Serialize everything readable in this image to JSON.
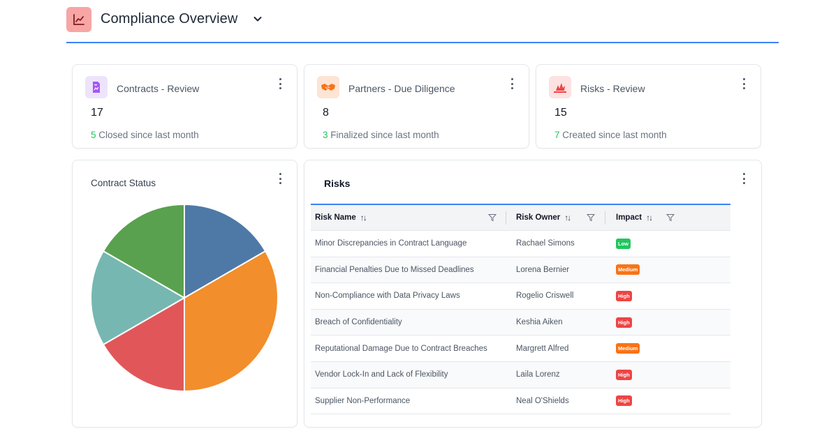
{
  "header": {
    "title": "Compliance Overview"
  },
  "kpis": [
    {
      "title": "Contracts - Review",
      "value": "17",
      "foot_num": "5",
      "foot_text": " Closed since last month",
      "icon": "document-chart-icon",
      "icon_bg": "#ede4fb",
      "icon_color": "#a855f7"
    },
    {
      "title": "Partners - Due Diligence",
      "value": "8",
      "foot_num": "3",
      "foot_text": " Finalized since last month",
      "icon": "handshake-icon",
      "icon_bg": "#fde4d4",
      "icon_color": "#f97316"
    },
    {
      "title": "Risks - Review",
      "value": "15",
      "foot_num": "7",
      "foot_text": " Created since last month",
      "icon": "warning-burst-icon",
      "icon_bg": "#fde2e2",
      "icon_color": "#ef4444"
    }
  ],
  "pie": {
    "title": "Contract Status"
  },
  "chart_data": {
    "type": "pie",
    "title": "Contract Status",
    "values": [
      3,
      6,
      3,
      3,
      3
    ],
    "colors": [
      "#4e79a7",
      "#f28e2b",
      "#e15759",
      "#76b7b2",
      "#59a14f"
    ]
  },
  "risks": {
    "title": "Risks",
    "columns": [
      "Risk Name",
      "Risk Owner",
      "Impact"
    ],
    "rows": [
      {
        "name": "Minor Discrepancies in Contract Language",
        "owner": "Rachael Simons",
        "impact": "Low"
      },
      {
        "name": "Financial Penalties Due to Missed Deadlines",
        "owner": "Lorena Bernier",
        "impact": "Medium"
      },
      {
        "name": "Non-Compliance with Data Privacy Laws",
        "owner": "Rogelio Criswell",
        "impact": "High"
      },
      {
        "name": "Breach of Confidentiality",
        "owner": "Keshia Aiken",
        "impact": "High"
      },
      {
        "name": "Reputational Damage Due to Contract Breaches",
        "owner": "Margrett Alfred",
        "impact": "Medium"
      },
      {
        "name": "Vendor Lock-In and Lack of Flexibility",
        "owner": "Laila Lorenz",
        "impact": "High"
      },
      {
        "name": "Supplier Non-Performance",
        "owner": "Neal O'Shields",
        "impact": "High"
      }
    ],
    "impact_colors": {
      "Low": "#22c55e",
      "Medium": "#f97316",
      "High": "#ef4444"
    }
  }
}
